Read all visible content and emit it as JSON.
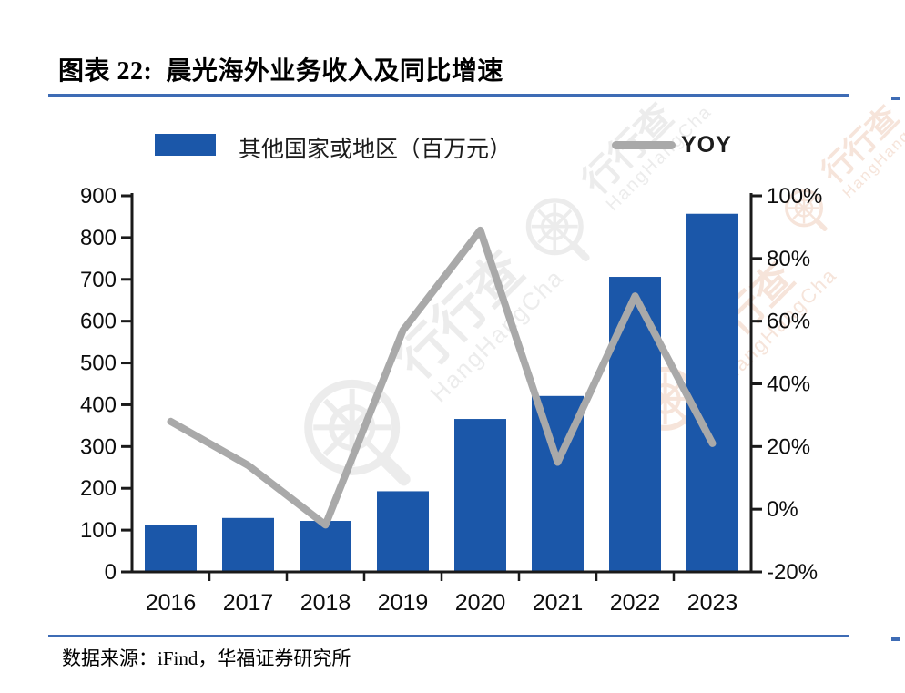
{
  "figure": {
    "title": "图表 22:  晨光海外业务收入及同比增速",
    "source": "数据来源：iFind，华福证券研究所"
  },
  "legend": {
    "bar_label": "其他国家或地区（百万元）",
    "line_label": "YOY"
  },
  "watermark": {
    "logo_text": "行行查",
    "brand_text": "HangHangCha"
  },
  "colors": {
    "bar": "#1B57A9",
    "line": "#A9A9A9",
    "rule": "#3E6CB5",
    "axis": "#1A1A1A",
    "watermark_gray": "#ECECEC",
    "watermark_pink": "#F6E4DA"
  },
  "chart_data": {
    "type": "bar",
    "subtype": "bar+line combo, dual axis",
    "title": "晨光海外业务收入及同比增速",
    "categories": [
      "2016",
      "2017",
      "2018",
      "2019",
      "2020",
      "2021",
      "2022",
      "2023"
    ],
    "series": [
      {
        "name": "其他国家或地区（百万元）",
        "type": "bar",
        "axis": "left",
        "values": [
          112,
          129,
          122,
          193,
          366,
          421,
          706,
          857
        ]
      },
      {
        "name": "YOY",
        "type": "line",
        "axis": "right",
        "values": [
          28,
          14,
          -5,
          57,
          89,
          15,
          68,
          21
        ],
        "unit": "%"
      }
    ],
    "left_axis": {
      "min": 0,
      "max": 900,
      "step": 100
    },
    "right_axis": {
      "min": -20,
      "max": 100,
      "step": 20,
      "suffix": "%"
    },
    "grid": false,
    "legend_position": "top"
  }
}
